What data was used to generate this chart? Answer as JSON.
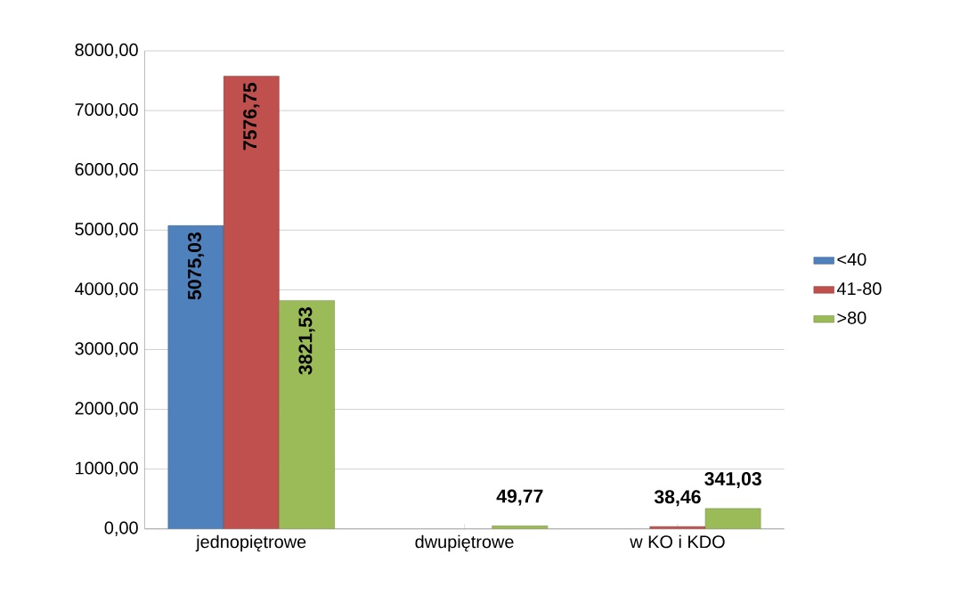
{
  "chart_data": {
    "type": "bar",
    "categories": [
      "jednopiętrowe",
      "dwupiętrowe",
      "w KO i KDO"
    ],
    "series": [
      {
        "name": "<40",
        "color": "#4f81bd",
        "values": [
          5075.03,
          null,
          null
        ],
        "value_labels": [
          "5075,03",
          null,
          null
        ]
      },
      {
        "name": "41-80",
        "color": "#c0504d",
        "values": [
          7576.75,
          null,
          38.46
        ],
        "value_labels": [
          "7576,75",
          null,
          "38,46"
        ]
      },
      {
        "name": ">80",
        "color": "#9bbb59",
        "values": [
          3821.53,
          49.77,
          341.03
        ],
        "value_labels": [
          "3821,53",
          "49,77",
          "341,03"
        ]
      }
    ],
    "ylim": [
      0,
      8000
    ],
    "yticks": [
      {
        "value": 0,
        "label": "0,00"
      },
      {
        "value": 1000,
        "label": "1000,00"
      },
      {
        "value": 2000,
        "label": "2000,00"
      },
      {
        "value": 3000,
        "label": "3000,00"
      },
      {
        "value": 4000,
        "label": "4000,00"
      },
      {
        "value": 5000,
        "label": "5000,00"
      },
      {
        "value": 6000,
        "label": "6000,00"
      },
      {
        "value": 7000,
        "label": "7000,00"
      },
      {
        "value": 8000,
        "label": "8000,00"
      }
    ],
    "grid": "y",
    "legend": "right"
  }
}
